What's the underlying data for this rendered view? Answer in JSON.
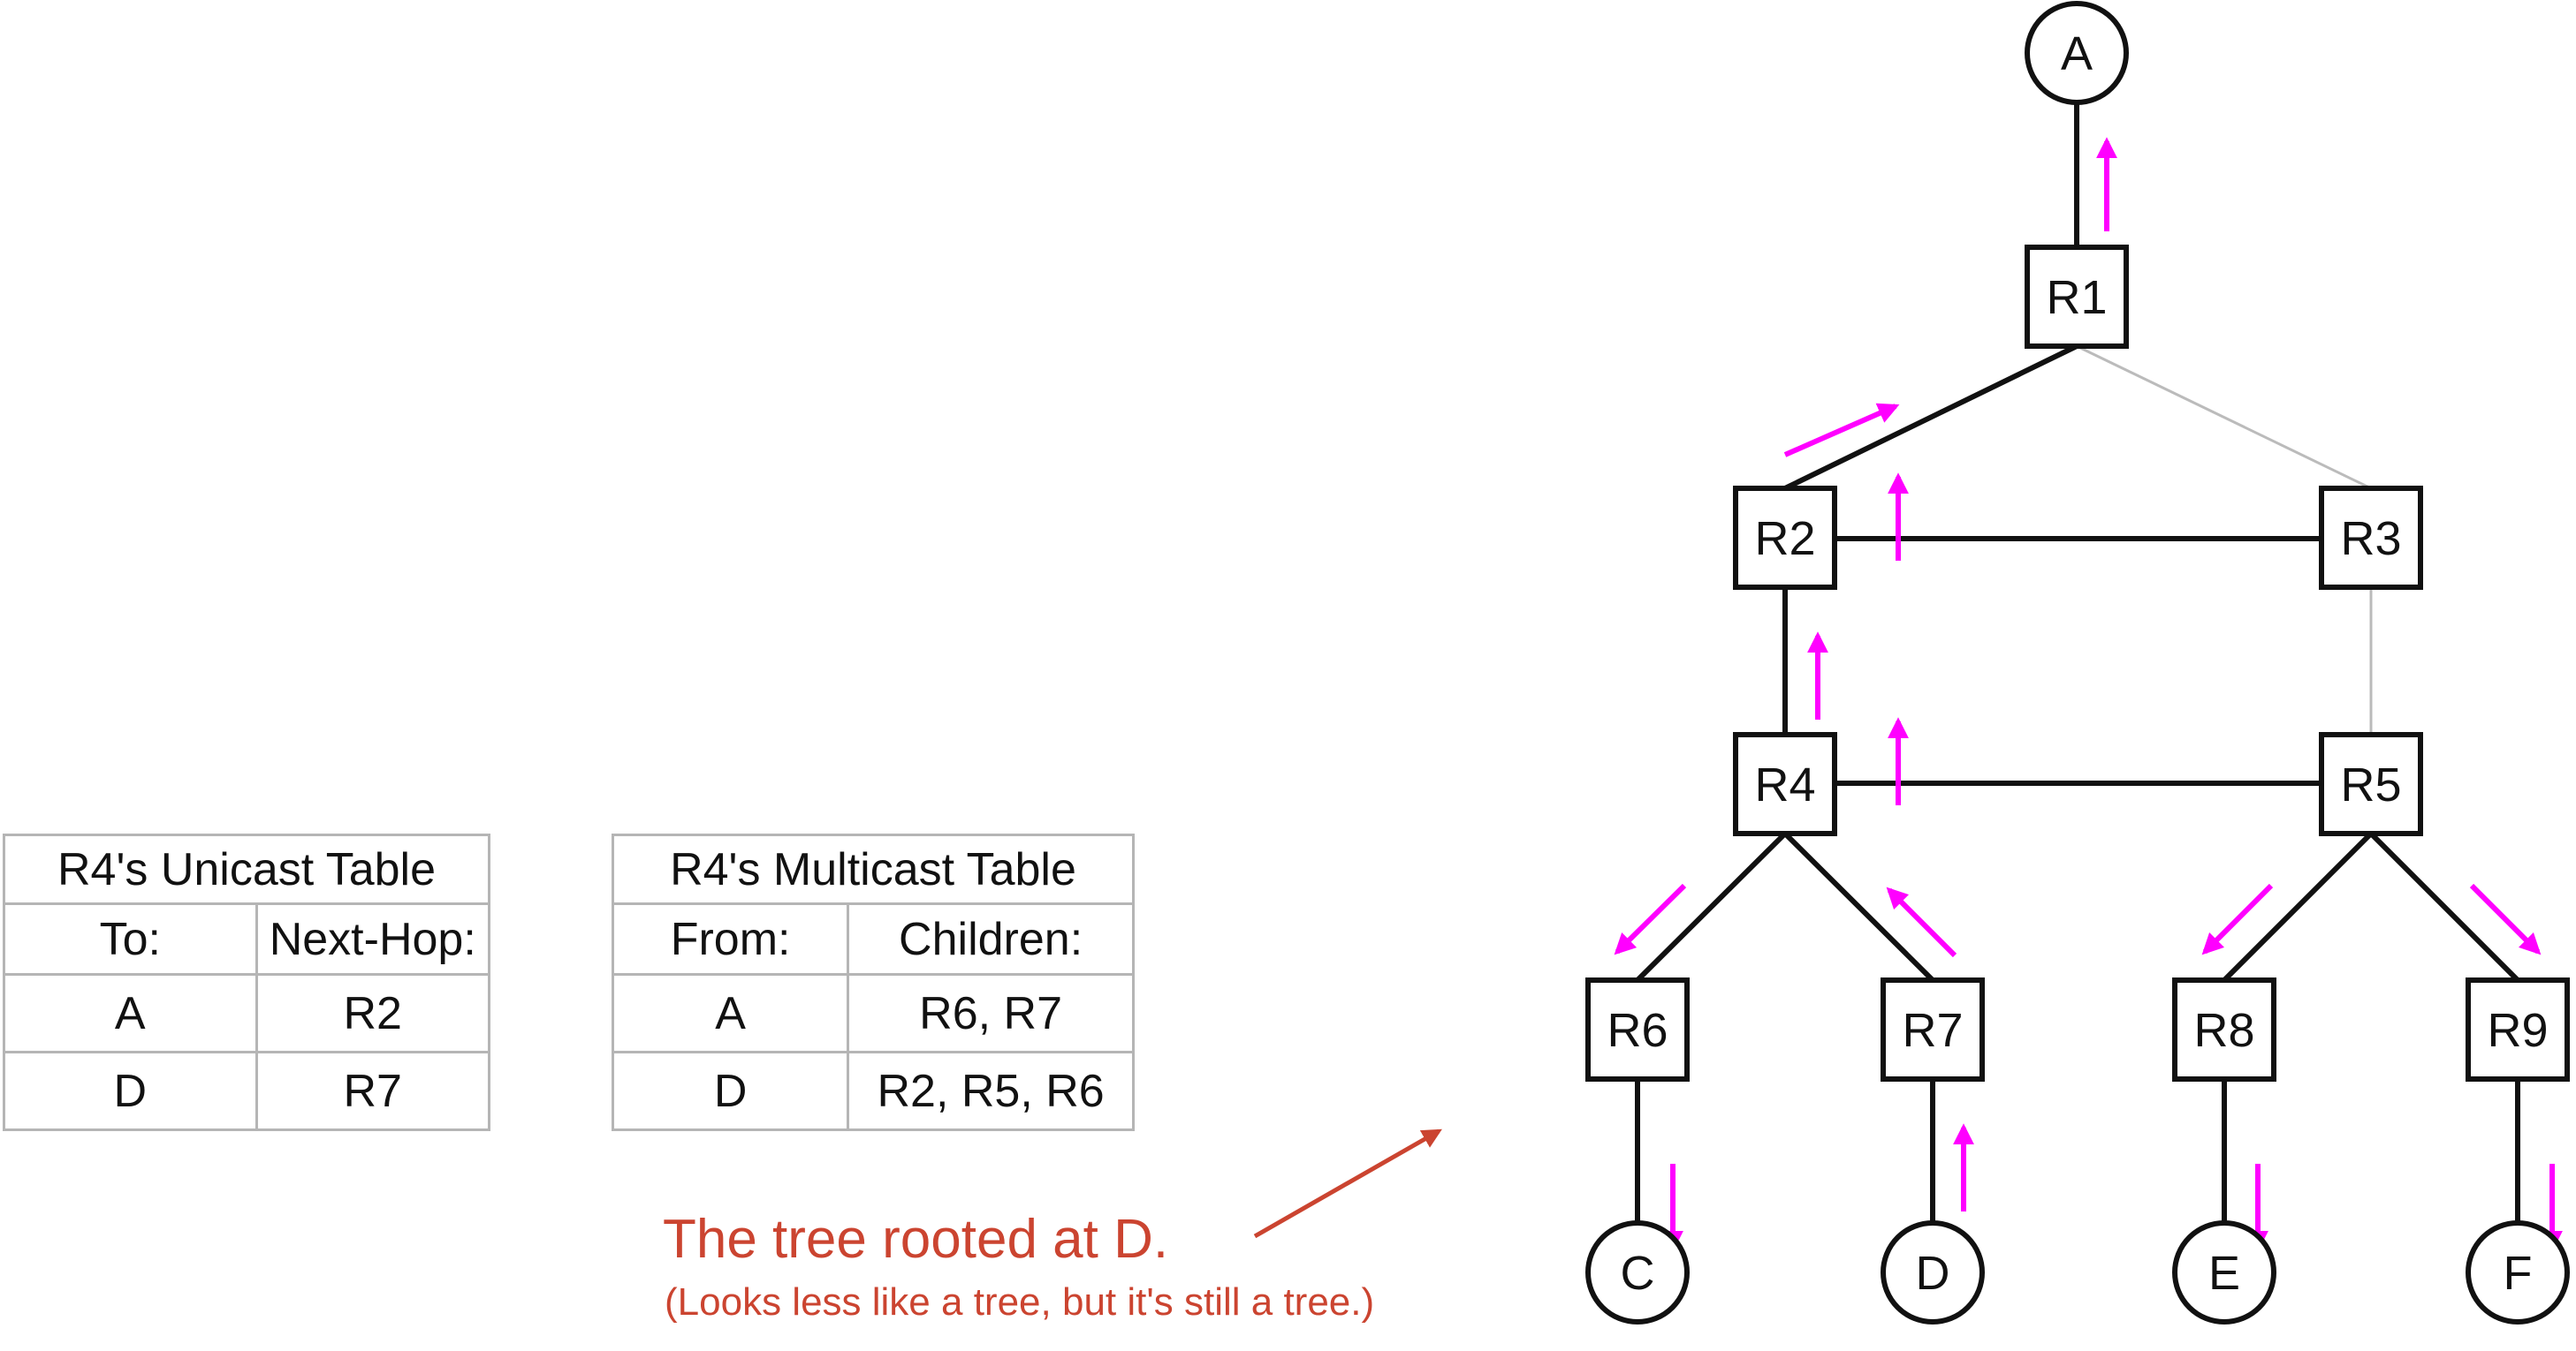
{
  "unicast_table": {
    "title": "R4's Unicast Table",
    "headers": [
      "To:",
      "Next-Hop:"
    ],
    "rows": [
      [
        "A",
        "R2"
      ],
      [
        "D",
        "R7"
      ]
    ]
  },
  "multicast_table": {
    "title": "R4's Multicast Table",
    "headers": [
      "From:",
      "Children:"
    ],
    "rows": [
      [
        "A",
        "R6, R7"
      ],
      [
        "D",
        "R2, R5, R6"
      ]
    ]
  },
  "caption": {
    "main": "The tree rooted at D.",
    "sub": "(Looks less like a tree, but it's still a tree.)"
  },
  "colors": {
    "tree_edge": "#111111",
    "non_tree_edge": "#bbbbbb",
    "flow_arrow": "#ff00ff",
    "caption": "#cb4430"
  },
  "diagram": {
    "hosts": [
      "A",
      "C",
      "D",
      "E",
      "F"
    ],
    "routers": [
      "R1",
      "R2",
      "R3",
      "R4",
      "R5",
      "R6",
      "R7",
      "R8",
      "R9"
    ]
  }
}
